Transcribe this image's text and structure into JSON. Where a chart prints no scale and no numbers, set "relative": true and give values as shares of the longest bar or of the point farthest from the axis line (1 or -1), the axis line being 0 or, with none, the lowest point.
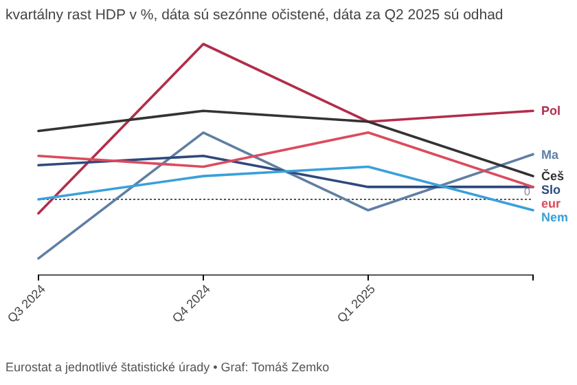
{
  "chart_data": {
    "type": "line",
    "relative": true,
    "title": "kvartálny rast HDP v %, dáta sú sezónne očistené, dáta za Q2 2025 sú odhad",
    "categories": [
      "Q3 2024",
      "Q4 2024",
      "Q1 2025",
      null
    ],
    "series": [
      {
        "name": "Pol",
        "color": "#b22d4b",
        "values": [
          -0.09,
          1,
          0.5,
          0.57
        ]
      },
      {
        "name": "Ma",
        "color": "#5f7fa3",
        "values": [
          -0.38,
          0.43,
          -0.07,
          0.29
        ]
      },
      {
        "name": "Češ",
        "color": "#333333",
        "values": [
          0.44,
          0.57,
          0.5,
          0.15
        ]
      },
      {
        "name": "Slo",
        "color": "#2e4a7d",
        "values": [
          0.22,
          0.28,
          0.08,
          0.08
        ]
      },
      {
        "name": "eur",
        "color": "#db4b5e",
        "values": [
          0.28,
          0.21,
          0.43,
          0.08
        ]
      },
      {
        "name": "Nem",
        "color": "#3aa0db",
        "values": [
          0,
          0.15,
          0.21,
          -0.07
        ]
      }
    ],
    "ref_lines": [
      {
        "axis": "y",
        "value": 0,
        "label": "0",
        "line_style": "dotted"
      }
    ],
    "annotations": [
      "Eurostat a jednotlivé štatistické úrady • Graf: Tomáš Zemko"
    ]
  }
}
